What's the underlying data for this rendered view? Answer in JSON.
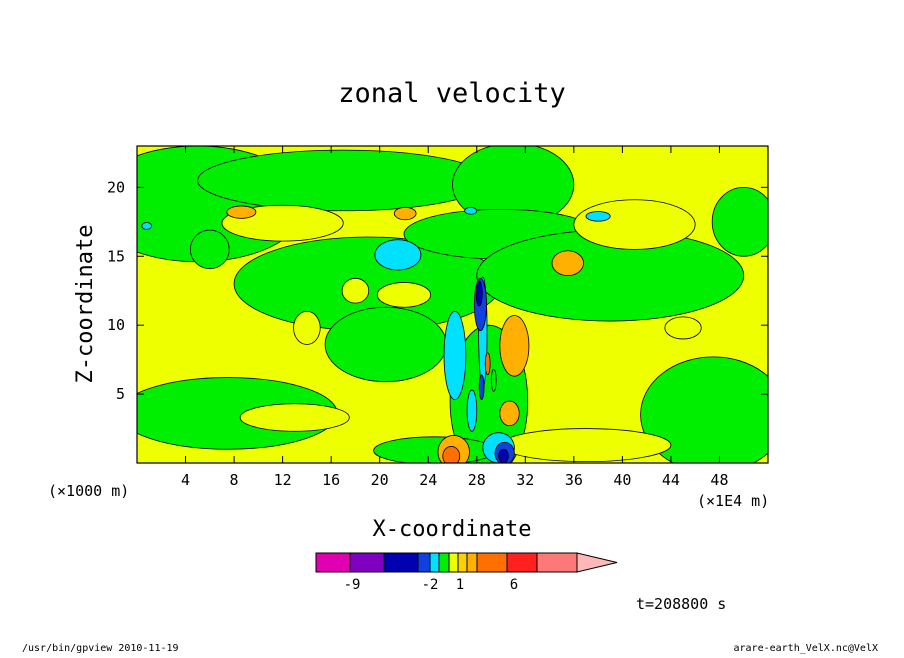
{
  "chart_data": {
    "type": "heatmap",
    "subtype": "filled-contour",
    "title": "zonal velocity",
    "xlabel": "X-coordinate",
    "ylabel": "Z-coordinate",
    "x_unit": "(×1E4 m)",
    "y_unit": "(×1000 m)",
    "xlim": [
      0,
      52
    ],
    "ylim": [
      0,
      23
    ],
    "xticks": [
      4,
      8,
      12,
      16,
      20,
      24,
      28,
      32,
      36,
      40,
      44,
      48
    ],
    "yticks": [
      5,
      10,
      15,
      20
    ],
    "background_color": "#eeff00",
    "contour_line_color": "#000000",
    "regions": [
      {
        "color": "#00ee00",
        "cx": 5,
        "cy": 18.8,
        "rx": 9,
        "ry": 4.2
      },
      {
        "color": "#00ee00",
        "cx": 17,
        "cy": 20.5,
        "rx": 12,
        "ry": 2.2
      },
      {
        "color": "#00ee00",
        "cx": 31,
        "cy": 20.2,
        "rx": 5,
        "ry": 3
      },
      {
        "color": "#00ee00",
        "cx": 19,
        "cy": 13,
        "rx": 11,
        "ry": 3.4
      },
      {
        "color": "#00ee00",
        "cx": 30,
        "cy": 16.6,
        "rx": 8,
        "ry": 1.8
      },
      {
        "color": "#00ee00",
        "cx": 39,
        "cy": 13.6,
        "rx": 11,
        "ry": 3.3
      },
      {
        "color": "#00ee00",
        "cx": 20.5,
        "cy": 8.6,
        "rx": 5,
        "ry": 2.7
      },
      {
        "color": "#00ee00",
        "cx": 7.5,
        "cy": 3.6,
        "rx": 9,
        "ry": 2.6
      },
      {
        "color": "#00ee00",
        "cx": 47.5,
        "cy": 3.5,
        "rx": 6,
        "ry": 4.2
      },
      {
        "color": "#00ee00",
        "cx": 29,
        "cy": 4.5,
        "rx": 3.2,
        "ry": 5.5
      },
      {
        "color": "#00ee00",
        "cx": 6,
        "cy": 15.5,
        "rx": 1.6,
        "ry": 1.4
      },
      {
        "color": "#00ee00",
        "cx": 50,
        "cy": 17.5,
        "rx": 2.6,
        "ry": 2.5
      },
      {
        "color": "#00ee00",
        "cx": 24.5,
        "cy": 0.9,
        "rx": 5,
        "ry": 1
      },
      {
        "color": "#eeff00",
        "cx": 12,
        "cy": 17.4,
        "rx": 5,
        "ry": 1.3
      },
      {
        "color": "#eeff00",
        "cx": 41,
        "cy": 17.3,
        "rx": 5,
        "ry": 1.8
      },
      {
        "color": "#eeff00",
        "cx": 22,
        "cy": 12.2,
        "rx": 2.2,
        "ry": 0.9
      },
      {
        "color": "#eeff00",
        "cx": 18,
        "cy": 12.5,
        "rx": 1.1,
        "ry": 0.9
      },
      {
        "color": "#eeff00",
        "cx": 14,
        "cy": 9.8,
        "rx": 1.1,
        "ry": 1.2
      },
      {
        "color": "#eeff00",
        "cx": 13,
        "cy": 3.3,
        "rx": 4.5,
        "ry": 1
      },
      {
        "color": "#eeff00",
        "cx": 45,
        "cy": 9.8,
        "rx": 1.5,
        "ry": 0.8
      },
      {
        "color": "#eeff00",
        "cx": 37,
        "cy": 1.3,
        "rx": 7,
        "ry": 1.2
      },
      {
        "color": "#00e0ff",
        "cx": 21.5,
        "cy": 15.1,
        "rx": 1.9,
        "ry": 1.1
      },
      {
        "color": "#00e0ff",
        "cx": 26.2,
        "cy": 7.8,
        "rx": 0.9,
        "ry": 3.2
      },
      {
        "color": "#00e0ff",
        "cx": 27.6,
        "cy": 3.8,
        "rx": 0.4,
        "ry": 1.5
      },
      {
        "color": "#00e0ff",
        "cx": 29.8,
        "cy": 1.1,
        "rx": 1.3,
        "ry": 1.1
      },
      {
        "color": "#00e0ff",
        "cx": 38,
        "cy": 17.9,
        "rx": 1,
        "ry": 0.35
      },
      {
        "color": "#00e0ff",
        "cx": 27.5,
        "cy": 18.3,
        "rx": 0.5,
        "ry": 0.25
      },
      {
        "color": "#00e0ff",
        "cx": 0.8,
        "cy": 17.2,
        "rx": 0.4,
        "ry": 0.25
      },
      {
        "color": "#ffb000",
        "cx": 8.6,
        "cy": 18.2,
        "rx": 1.2,
        "ry": 0.45
      },
      {
        "color": "#ffb000",
        "cx": 22.1,
        "cy": 18.1,
        "rx": 0.9,
        "ry": 0.45
      },
      {
        "color": "#ffb000",
        "cx": 35.5,
        "cy": 14.5,
        "rx": 1.3,
        "ry": 0.9
      },
      {
        "color": "#ffb000",
        "cx": 31.1,
        "cy": 8.5,
        "rx": 1.2,
        "ry": 2.2
      },
      {
        "color": "#ffb000",
        "cx": 30.7,
        "cy": 3.6,
        "rx": 0.8,
        "ry": 0.9
      },
      {
        "color": "#ffb000",
        "cx": 26.1,
        "cy": 0.8,
        "rx": 1.3,
        "ry": 1.2
      },
      {
        "color": "#ff7000",
        "cx": 25.9,
        "cy": 0.5,
        "rx": 0.7,
        "ry": 0.7
      },
      {
        "color": "#00e0ff",
        "cx": 28.5,
        "cy": 9.5,
        "rx": 0.35,
        "ry": 4
      },
      {
        "color": "#1040e0",
        "cx": 28.3,
        "cy": 11.5,
        "rx": 0.5,
        "ry": 1.9
      },
      {
        "color": "#0000b0",
        "cx": 28.2,
        "cy": 12.3,
        "rx": 0.25,
        "ry": 0.9
      },
      {
        "color": "#1040e0",
        "cx": 30.3,
        "cy": 0.7,
        "rx": 0.8,
        "ry": 0.8
      },
      {
        "color": "#0000b0",
        "cx": 30.2,
        "cy": 0.5,
        "rx": 0.4,
        "ry": 0.5
      },
      {
        "color": "#1040e0",
        "cx": 28.4,
        "cy": 5.5,
        "rx": 0.2,
        "ry": 0.9
      },
      {
        "color": "#ff7000",
        "cx": 28.9,
        "cy": 7.2,
        "rx": 0.2,
        "ry": 0.8
      },
      {
        "color": "#00ee00",
        "cx": 29.4,
        "cy": 6,
        "rx": 0.2,
        "ry": 0.8
      }
    ],
    "colorbar": {
      "colors": [
        "#e000b0",
        "#8000c0",
        "#0000b0",
        "#1040e0",
        "#00e0ff",
        "#00ee00",
        "#eeff00",
        "#ffd000",
        "#ffb000",
        "#ff7000",
        "#ff2020",
        "#ff7878",
        "#ffb8b8"
      ],
      "labels": [
        "-9",
        "-2",
        "1",
        "6"
      ],
      "extend": "max"
    },
    "time_label": "t=208800 s",
    "footer_left": "/usr/bin/gpview  2010-11-19",
    "footer_right": "arare-earth_VelX.nc@VelX"
  }
}
